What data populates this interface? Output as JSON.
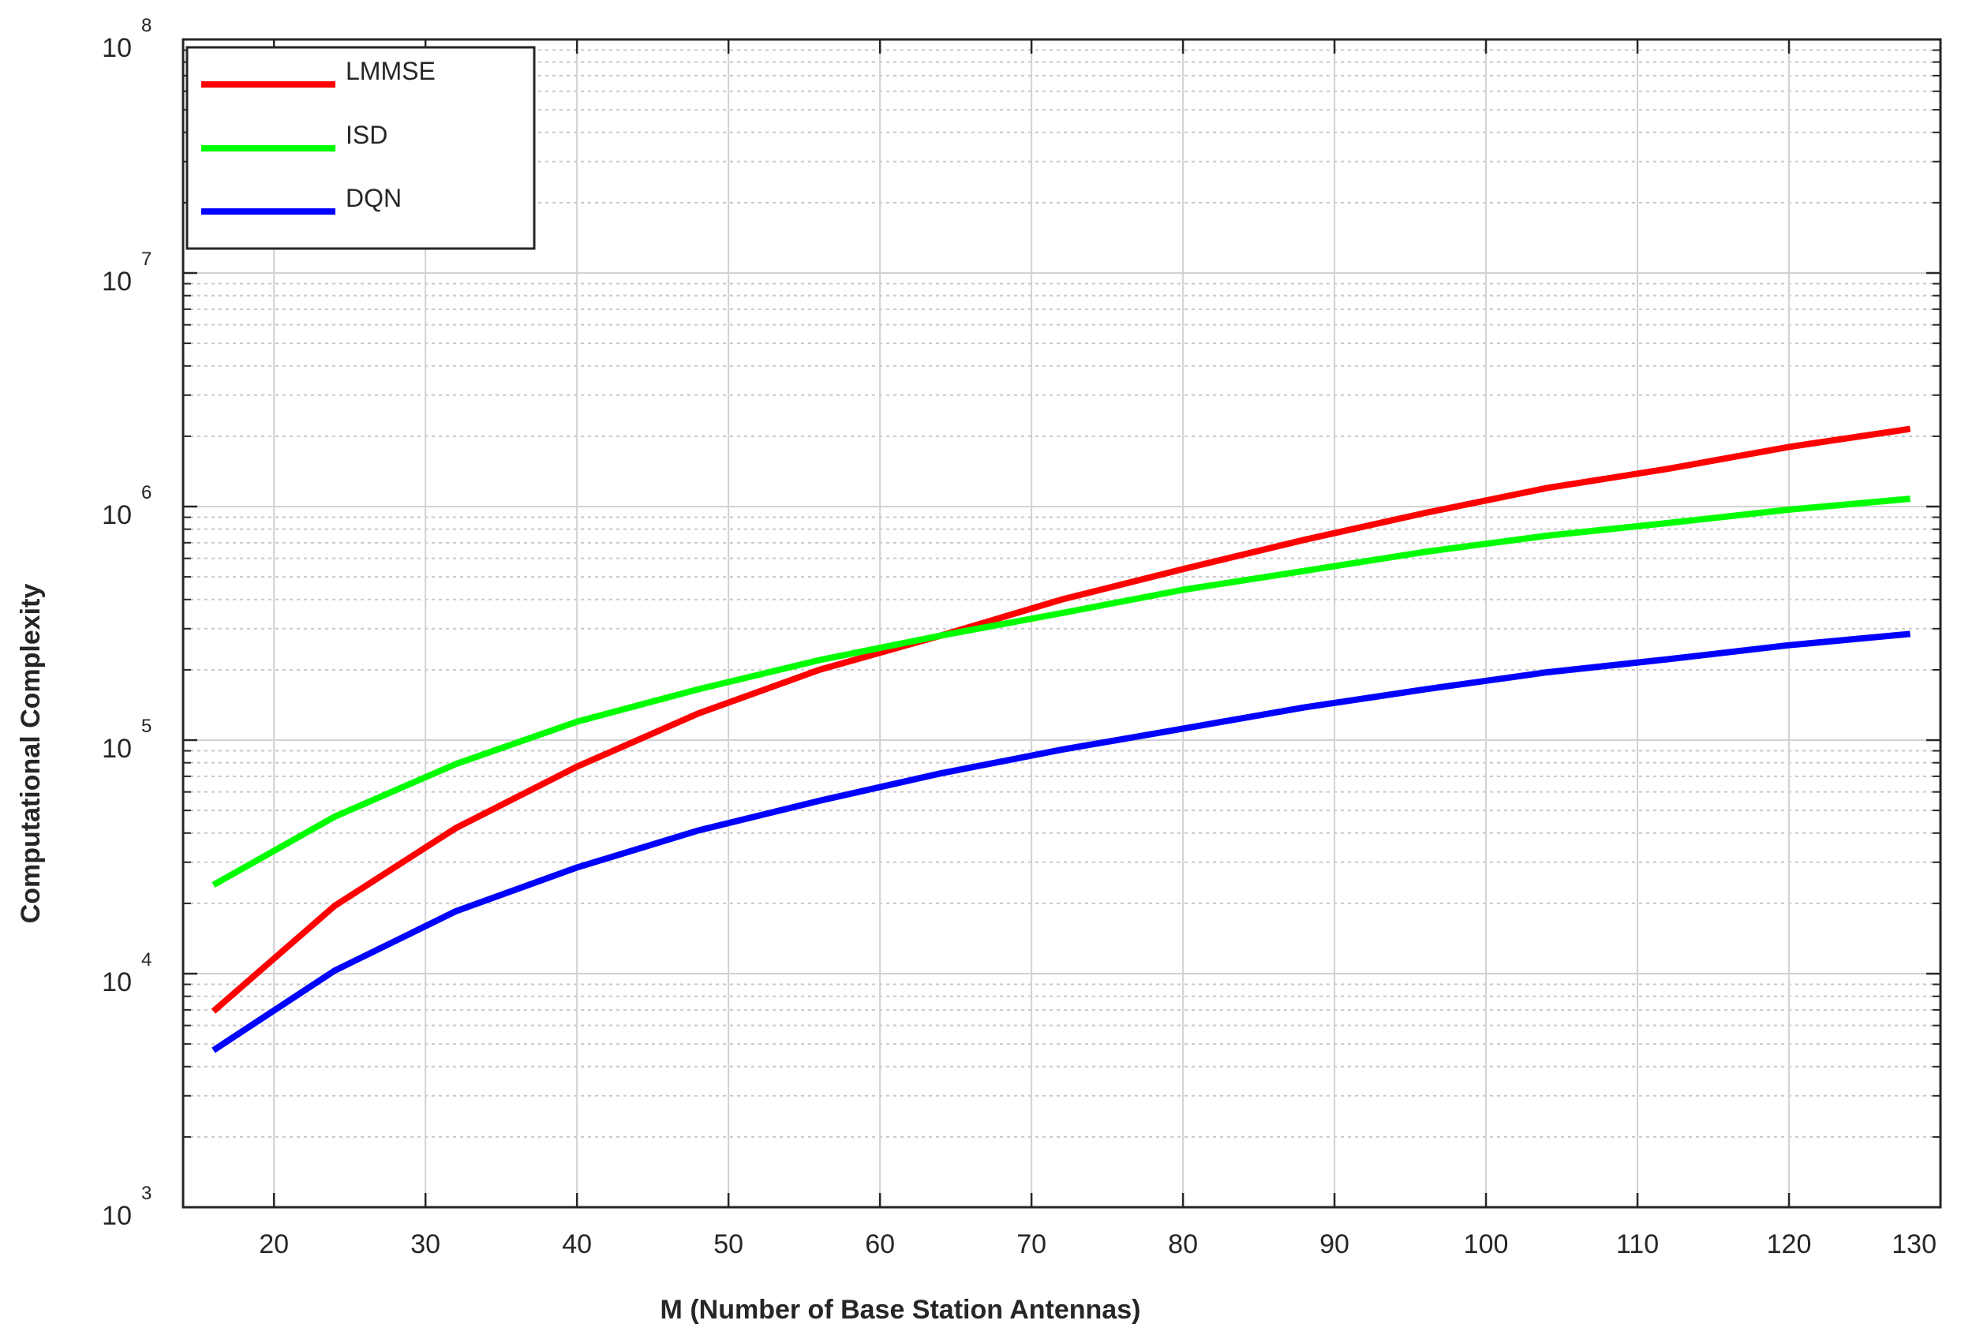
{
  "chart_data": {
    "type": "line",
    "xlabel": "M (Number of Base Station Antennas)",
    "ylabel": "Computational Complexity",
    "xlim": [
      14,
      130
    ],
    "ylim": [
      1000,
      100000000
    ],
    "yscale": "log",
    "grid": true,
    "legend_position": "top-left",
    "x_ticks": [
      20,
      30,
      40,
      50,
      60,
      70,
      80,
      90,
      100,
      110,
      120,
      130
    ],
    "x_tick_labels": [
      "20",
      "30",
      "40",
      "50",
      "60",
      "70",
      "80",
      "90",
      "100",
      "110",
      "120",
      "130"
    ],
    "y_ticks": [
      {
        "value": 1000,
        "base": "10",
        "exp": "3"
      },
      {
        "value": 10000,
        "base": "10",
        "exp": "4"
      },
      {
        "value": 100000,
        "base": "10",
        "exp": "5"
      },
      {
        "value": 1000000,
        "base": "10",
        "exp": "6"
      },
      {
        "value": 10000000,
        "base": "10",
        "exp": "7"
      },
      {
        "value": 100000000,
        "base": "10",
        "exp": "8"
      }
    ],
    "x": [
      16,
      24,
      32,
      40,
      48,
      56,
      64,
      72,
      80,
      88,
      96,
      104,
      112,
      120,
      128
    ],
    "series": [
      {
        "name": "LMMSE",
        "color": "#ff0000",
        "values": [
          6900,
          19500,
          42000,
          77000,
          130000,
          200000,
          280000,
          400000,
          540000,
          720000,
          940000,
          1200000,
          1450000,
          1800000,
          2150000
        ]
      },
      {
        "name": "ISD",
        "color": "#00ff00",
        "values": [
          24000,
          47000,
          79000,
          120000,
          165000,
          220000,
          280000,
          350000,
          440000,
          530000,
          640000,
          750000,
          850000,
          970000,
          1080000
        ]
      },
      {
        "name": "DQN",
        "color": "#0000ff",
        "values": [
          4700,
          10300,
          18500,
          28500,
          41000,
          55000,
          72000,
          91000,
          112000,
          138000,
          165000,
          195000,
          222000,
          255000,
          285000
        ]
      }
    ]
  }
}
